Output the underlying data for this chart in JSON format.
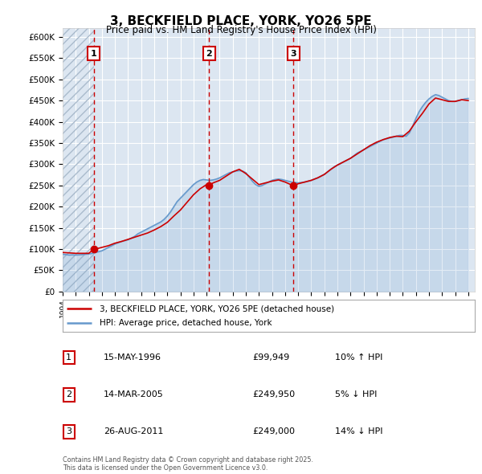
{
  "title": "3, BECKFIELD PLACE, YORK, YO26 5PE",
  "subtitle": "Price paid vs. HM Land Registry's House Price Index (HPI)",
  "plot_bg_color": "#dce6f1",
  "ylim": [
    0,
    620000
  ],
  "yticks": [
    0,
    50000,
    100000,
    150000,
    200000,
    250000,
    300000,
    350000,
    400000,
    450000,
    500000,
    550000,
    600000
  ],
  "ytick_labels": [
    "£0",
    "£50K",
    "£100K",
    "£150K",
    "£200K",
    "£250K",
    "£300K",
    "£350K",
    "£400K",
    "£450K",
    "£500K",
    "£550K",
    "£600K"
  ],
  "xlim_start": 1994.0,
  "xlim_end": 2025.5,
  "sale_dates": [
    1996.37,
    2005.2,
    2011.65
  ],
  "sale_prices": [
    99949,
    249950,
    249000
  ],
  "sale_labels": [
    "1",
    "2",
    "3"
  ],
  "legend_label_red": "3, BECKFIELD PLACE, YORK, YO26 5PE (detached house)",
  "legend_label_blue": "HPI: Average price, detached house, York",
  "table_rows": [
    [
      "1",
      "15-MAY-1996",
      "£99,949",
      "10% ↑ HPI"
    ],
    [
      "2",
      "14-MAR-2005",
      "£249,950",
      "5% ↓ HPI"
    ],
    [
      "3",
      "26-AUG-2011",
      "£249,000",
      "14% ↓ HPI"
    ]
  ],
  "footnote": "Contains HM Land Registry data © Crown copyright and database right 2025.\nThis data is licensed under the Open Government Licence v3.0.",
  "red_line_color": "#cc0000",
  "blue_line_color": "#6699cc",
  "hpi_data": {
    "years": [
      1994.0,
      1994.25,
      1994.5,
      1994.75,
      1995.0,
      1995.25,
      1995.5,
      1995.75,
      1996.0,
      1996.25,
      1996.5,
      1996.75,
      1997.0,
      1997.25,
      1997.5,
      1997.75,
      1998.0,
      1998.25,
      1998.5,
      1998.75,
      1999.0,
      1999.25,
      1999.5,
      1999.75,
      2000.0,
      2000.25,
      2000.5,
      2000.75,
      2001.0,
      2001.25,
      2001.5,
      2001.75,
      2002.0,
      2002.25,
      2002.5,
      2002.75,
      2003.0,
      2003.25,
      2003.5,
      2003.75,
      2004.0,
      2004.25,
      2004.5,
      2004.75,
      2005.0,
      2005.25,
      2005.5,
      2005.75,
      2006.0,
      2006.25,
      2006.5,
      2006.75,
      2007.0,
      2007.25,
      2007.5,
      2007.75,
      2008.0,
      2008.25,
      2008.5,
      2008.75,
      2009.0,
      2009.25,
      2009.5,
      2009.75,
      2010.0,
      2010.25,
      2010.5,
      2010.75,
      2011.0,
      2011.25,
      2011.5,
      2011.75,
      2012.0,
      2012.25,
      2012.5,
      2012.75,
      2013.0,
      2013.25,
      2013.5,
      2013.75,
      2014.0,
      2014.25,
      2014.5,
      2014.75,
      2015.0,
      2015.25,
      2015.5,
      2015.75,
      2016.0,
      2016.25,
      2016.5,
      2016.75,
      2017.0,
      2017.25,
      2017.5,
      2017.75,
      2018.0,
      2018.25,
      2018.5,
      2018.75,
      2019.0,
      2019.25,
      2019.5,
      2019.75,
      2020.0,
      2020.25,
      2020.5,
      2020.75,
      2021.0,
      2021.25,
      2021.5,
      2021.75,
      2022.0,
      2022.25,
      2022.5,
      2022.75,
      2023.0,
      2023.25,
      2023.5,
      2023.75,
      2024.0,
      2024.25,
      2024.5,
      2024.75,
      2025.0
    ],
    "prices": [
      88000,
      87000,
      86000,
      86500,
      86000,
      86500,
      87000,
      88000,
      88500,
      90000,
      92000,
      94000,
      96000,
      100000,
      104000,
      108000,
      112000,
      115000,
      118000,
      120000,
      122000,
      126000,
      130000,
      136000,
      140000,
      144000,
      148000,
      152000,
      156000,
      160000,
      164000,
      170000,
      178000,
      188000,
      200000,
      212000,
      220000,
      228000,
      236000,
      244000,
      252000,
      258000,
      262000,
      264000,
      263000,
      262000,
      263000,
      265000,
      268000,
      272000,
      276000,
      280000,
      282000,
      284000,
      285000,
      284000,
      280000,
      270000,
      260000,
      252000,
      248000,
      250000,
      254000,
      258000,
      262000,
      264000,
      265000,
      264000,
      262000,
      260000,
      258000,
      257000,
      256000,
      257000,
      258000,
      260000,
      262000,
      265000,
      268000,
      272000,
      276000,
      282000,
      288000,
      294000,
      298000,
      302000,
      306000,
      310000,
      314000,
      320000,
      326000,
      330000,
      334000,
      338000,
      342000,
      346000,
      350000,
      354000,
      358000,
      360000,
      362000,
      364000,
      366000,
      368000,
      368000,
      366000,
      374000,
      390000,
      408000,
      424000,
      436000,
      446000,
      454000,
      460000,
      464000,
      462000,
      458000,
      454000,
      450000,
      448000,
      448000,
      450000,
      452000,
      454000,
      455000
    ]
  },
  "red_line_data": {
    "years": [
      1994.0,
      1995.0,
      1995.5,
      1996.0,
      1996.37,
      1996.5,
      1997.0,
      1997.5,
      1998.0,
      1998.5,
      1999.0,
      1999.5,
      2000.0,
      2000.5,
      2001.0,
      2001.5,
      2002.0,
      2002.5,
      2003.0,
      2003.5,
      2004.0,
      2004.5,
      2005.0,
      2005.2,
      2005.5,
      2006.0,
      2006.5,
      2007.0,
      2007.5,
      2008.0,
      2008.5,
      2009.0,
      2009.5,
      2010.0,
      2010.5,
      2011.0,
      2011.65,
      2012.0,
      2012.5,
      2013.0,
      2013.5,
      2014.0,
      2014.5,
      2015.0,
      2015.5,
      2016.0,
      2016.5,
      2017.0,
      2017.5,
      2018.0,
      2018.5,
      2019.0,
      2019.5,
      2020.0,
      2020.5,
      2021.0,
      2021.5,
      2022.0,
      2022.5,
      2023.0,
      2023.5,
      2024.0,
      2024.5,
      2025.0
    ],
    "prices": [
      92000,
      90000,
      90000,
      90000,
      99949,
      100000,
      104000,
      108000,
      114000,
      118000,
      123000,
      128000,
      133000,
      138000,
      145000,
      153000,
      163000,
      178000,
      192000,
      210000,
      228000,
      242000,
      252000,
      249950,
      256000,
      262000,
      272000,
      282000,
      288000,
      278000,
      265000,
      252000,
      256000,
      260000,
      263000,
      258000,
      249000,
      254000,
      258000,
      262000,
      268000,
      276000,
      288000,
      298000,
      306000,
      314000,
      324000,
      334000,
      344000,
      352000,
      358000,
      363000,
      366000,
      365000,
      378000,
      400000,
      420000,
      442000,
      456000,
      452000,
      448000,
      448000,
      452000,
      450000
    ]
  }
}
